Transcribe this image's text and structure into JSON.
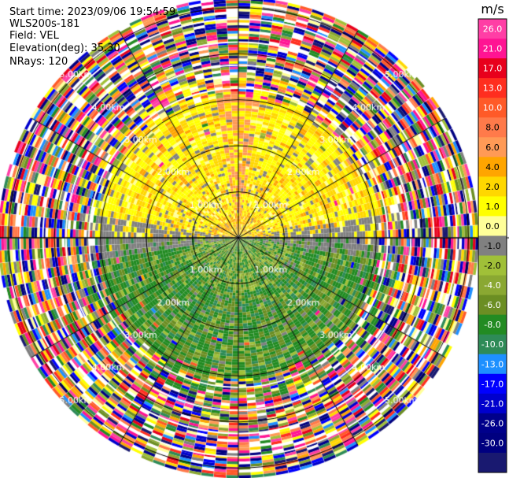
{
  "header": {
    "start_time": "Start time: 2023/09/06 19:54:59",
    "instrument": "WLS200s-181",
    "field": "Field: VEL",
    "elevation": "Elevation(deg): 35.30",
    "nrays": "NRays: 120"
  },
  "chart_data": {
    "type": "ppi",
    "field": "VEL",
    "units": "m/s",
    "nrays": 120,
    "elevation_deg": 35.3,
    "range_rings_km": [
      1.0,
      2.0,
      3.0,
      4.0,
      5.0
    ],
    "max_range_km": 5.2,
    "ring_labels": [
      "1.00km",
      "2.00km",
      "3.00km",
      "4.00km",
      "5.00km"
    ],
    "colorbar": {
      "unit_label": "m/s",
      "ticks": [
        "26.0",
        "21.0",
        "17.0",
        "13.0",
        "10.0",
        "8.0",
        "6.0",
        "4.0",
        "2.0",
        "1.0",
        "0.0",
        "-1.0",
        "-2.0",
        "-4.0",
        "-6.0",
        "-8.0",
        "-10.0",
        "-13.0",
        "-17.0",
        "-21.0",
        "-26.0",
        "-30.0"
      ],
      "colors": [
        "#ff3ea5",
        "#ff1493",
        "#e8001c",
        "#ff2e1f",
        "#ff5a28",
        "#ff7a4a",
        "#ff9a56",
        "#ffa500",
        "#ffd700",
        "#ffff00",
        "#ffff99",
        "#808080",
        "#a0c038",
        "#8aa832",
        "#6b8e23",
        "#228b22",
        "#2e8b57",
        "#1e90ff",
        "#0000ff",
        "#0000cd",
        "#00008b",
        "#000080",
        "#191970"
      ]
    },
    "pattern": {
      "near_north": "yellow/orange (+1 to +6 m/s)",
      "near_south": "green (-1 to -8 m/s)",
      "outer_rings": "noisy, all colours"
    }
  }
}
